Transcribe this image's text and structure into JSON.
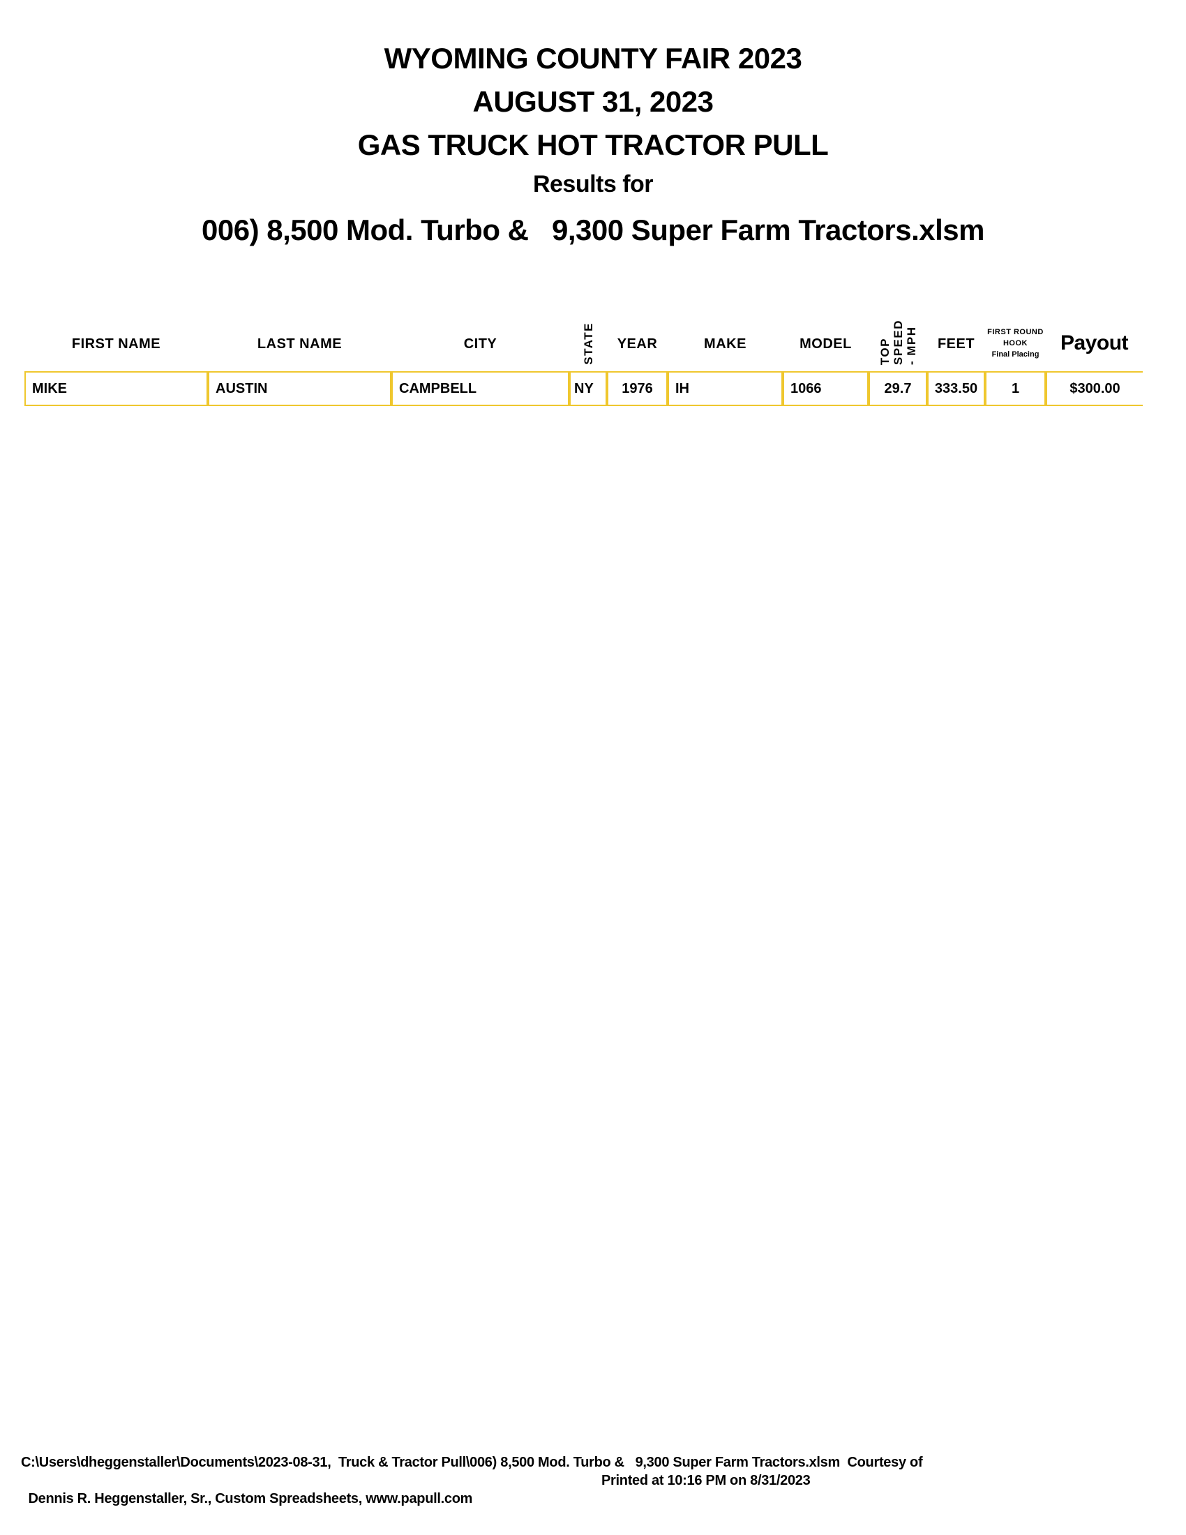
{
  "title": {
    "line1": "WYOMING COUNTY FAIR 2023",
    "line2": "AUGUST 31, 2023",
    "line3": "GAS TRUCK HOT TRACTOR PULL",
    "line4": "Results for",
    "line5": "006) 8,500 Mod. Turbo &   9,300 Super Farm Tractors.xlsm"
  },
  "table": {
    "headers": {
      "first_name": "FIRST NAME",
      "last_name": "LAST NAME",
      "city": "CITY",
      "state": "STATE",
      "year": "YEAR",
      "make": "MAKE",
      "model": "MODEL",
      "top_speed_line1": "TOP",
      "top_speed_line2": "SPEED",
      "top_speed_line3": "- MPH",
      "feet": "FEET",
      "hook_line1": "FIRST ROUND",
      "hook_line2": "HOOK",
      "hook_line3": "Final Placing",
      "payout": "Payout"
    },
    "rows": [
      {
        "first_name": "MIKE",
        "last_name": "AUSTIN",
        "city": "CAMPBELL",
        "state": "NY",
        "year": "1976",
        "make": "IH",
        "model": "1066",
        "top_speed": "29.7",
        "feet": "333.50",
        "hook": "1",
        "payout": "$300.00"
      }
    ]
  },
  "footer": {
    "line1": "C:\\Users\\dheggenstaller\\Documents\\2023-08-31,  Truck & Tractor Pull\\006) 8,500 Mod. Turbo &   9,300 Super Farm Tractors.xlsm  Courtesy of",
    "line2_left": "Dennis R. Heggenstaller, Sr., Custom Spreadsheets, www.papull.com",
    "line2_right": "Printed at 10:16 PM on 8/31/2023"
  },
  "colors": {
    "border_gold": "#EFC72E",
    "text": "#000000",
    "background": "#FFFFFF"
  }
}
